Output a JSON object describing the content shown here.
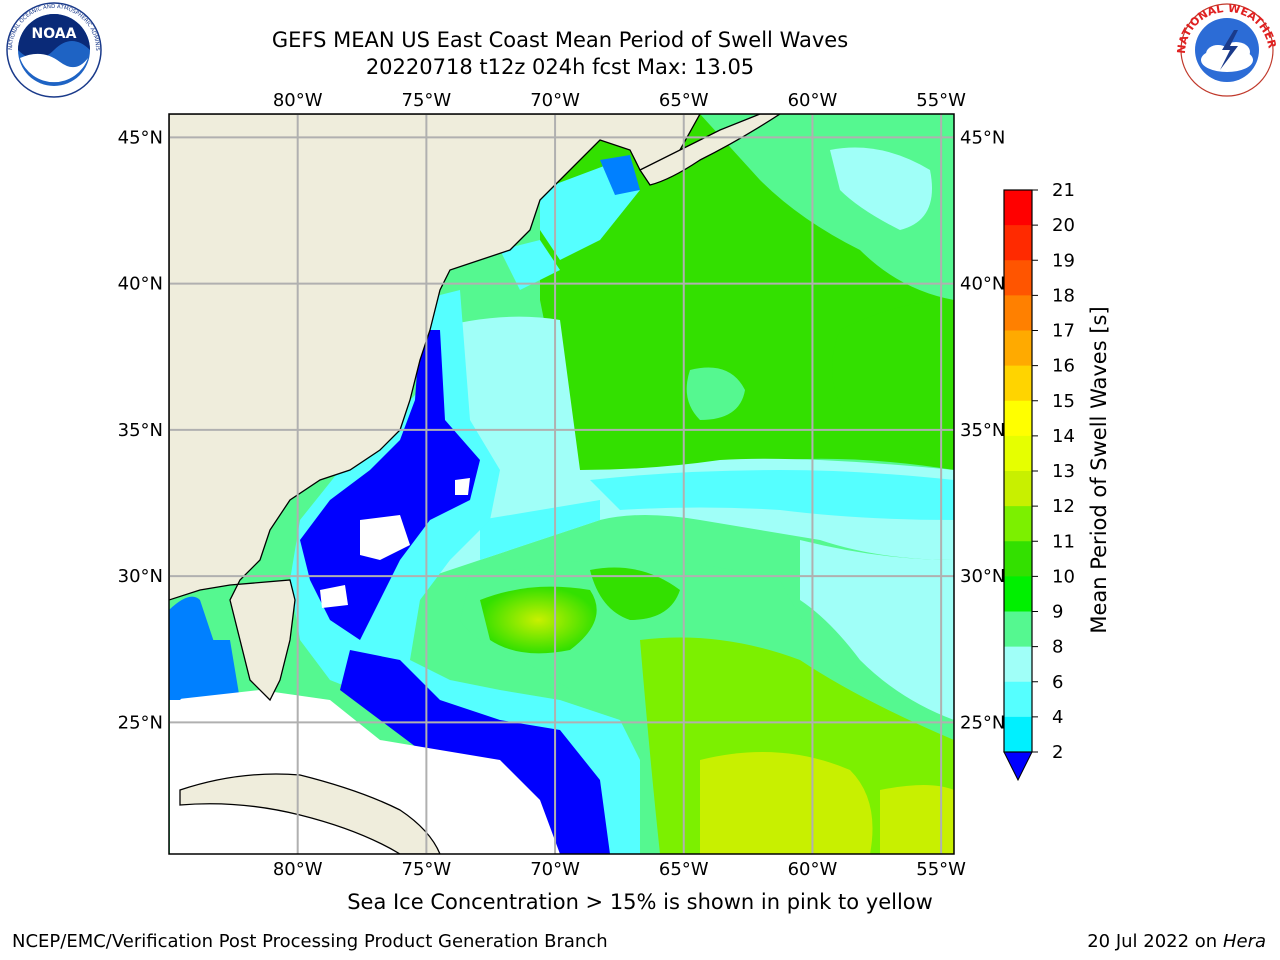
{
  "header": {
    "title_line1": "GEFS MEAN US East Coast Mean Period of Swell Waves",
    "title_line2": "20220718 t12z 024h fcst   Max: 13.05"
  },
  "logos": {
    "noaa": {
      "text": "NOAA",
      "ring_text": "NATIONAL OCEANIC AND ATMOSPHERIC ADMINISTRATION · U.S. DEPARTMENT OF COMMERCE"
    },
    "nws": {
      "ring_text": "NATIONAL WEATHER SERVICE"
    }
  },
  "map": {
    "lon_labels": [
      "80°W",
      "75°W",
      "70°W",
      "65°W",
      "60°W",
      "55°W"
    ],
    "lat_labels": [
      "45°N",
      "40°N",
      "35°N",
      "30°N",
      "25°N"
    ],
    "lon_values": [
      -80,
      -75,
      -70,
      -65,
      -60,
      -55
    ],
    "lat_values": [
      45,
      40,
      35,
      30,
      25
    ],
    "extent": {
      "lon_min": -85,
      "lon_max": -54.5,
      "lat_min": 20.5,
      "lat_max": 45.8
    }
  },
  "colorbar": {
    "label": "Mean Period of Swell Waves [s]",
    "ticks": [
      "21",
      "20",
      "19",
      "18",
      "17",
      "16",
      "15",
      "14",
      "13",
      "12",
      "11",
      "10",
      "9",
      "8",
      "6",
      "4",
      "2"
    ],
    "colors": [
      "#ff0000",
      "#ff2a00",
      "#ff5500",
      "#ff8000",
      "#ffaa00",
      "#ffd400",
      "#ffff00",
      "#e6ff00",
      "#c8f000",
      "#7cf000",
      "#33e000",
      "#00f000",
      "#55f890",
      "#a0fff8",
      "#55ffff",
      "#00f0ff",
      "#0080ff",
      "#0000ff"
    ],
    "land": "#efeddc",
    "grid": "#b0b0b0"
  },
  "caption": "Sea Ice Concentration > 15% is shown in pink to yellow",
  "footer": {
    "left": "NCEP/EMC/Verification Post Processing Product Generation Branch",
    "date": "20 Jul 2022 on ",
    "host": "Hera"
  }
}
